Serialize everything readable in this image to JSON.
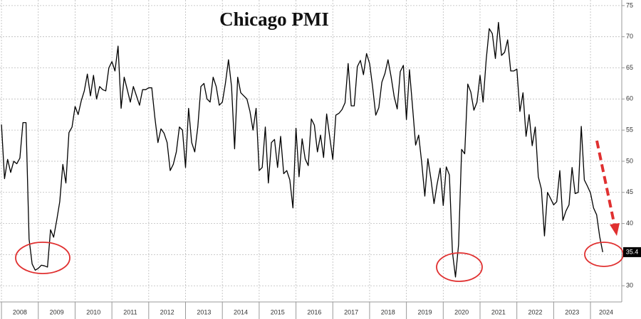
{
  "chart_data": {
    "type": "line",
    "title": "Chicago PMI",
    "xlim": [
      2007.96,
      2024.85
    ],
    "ylim": [
      27.4,
      75.9
    ],
    "yticks": [
      30,
      35,
      40,
      45,
      50,
      55,
      60,
      65,
      70,
      75
    ],
    "xticks": [
      2008,
      2009,
      2010,
      2011,
      2012,
      2013,
      2014,
      2015,
      2016,
      2017,
      2018,
      2019,
      2020,
      2021,
      2022,
      2023,
      2024
    ],
    "grid": true,
    "series": [
      {
        "name": "Chicago PMI",
        "color": "#000000",
        "x": [
          2008.0,
          2008.083,
          2008.167,
          2008.25,
          2008.333,
          2008.417,
          2008.5,
          2008.583,
          2008.667,
          2008.75,
          2008.833,
          2008.917,
          2009.0,
          2009.083,
          2009.167,
          2009.25,
          2009.333,
          2009.417,
          2009.5,
          2009.583,
          2009.667,
          2009.75,
          2009.833,
          2009.917,
          2010.0,
          2010.083,
          2010.167,
          2010.25,
          2010.333,
          2010.417,
          2010.5,
          2010.583,
          2010.667,
          2010.75,
          2010.833,
          2010.917,
          2011.0,
          2011.083,
          2011.167,
          2011.25,
          2011.333,
          2011.417,
          2011.5,
          2011.583,
          2011.667,
          2011.75,
          2011.833,
          2011.917,
          2012.0,
          2012.083,
          2012.167,
          2012.25,
          2012.333,
          2012.417,
          2012.5,
          2012.583,
          2012.667,
          2012.75,
          2012.833,
          2012.917,
          2013.0,
          2013.083,
          2013.167,
          2013.25,
          2013.333,
          2013.417,
          2013.5,
          2013.583,
          2013.667,
          2013.75,
          2013.833,
          2013.917,
          2014.0,
          2014.083,
          2014.167,
          2014.25,
          2014.333,
          2014.417,
          2014.5,
          2014.583,
          2014.667,
          2014.75,
          2014.833,
          2014.917,
          2015.0,
          2015.083,
          2015.167,
          2015.25,
          2015.333,
          2015.417,
          2015.5,
          2015.583,
          2015.667,
          2015.75,
          2015.833,
          2015.917,
          2016.0,
          2016.083,
          2016.167,
          2016.25,
          2016.333,
          2016.417,
          2016.5,
          2016.583,
          2016.667,
          2016.75,
          2016.833,
          2016.917,
          2017.0,
          2017.083,
          2017.167,
          2017.25,
          2017.333,
          2017.417,
          2017.5,
          2017.583,
          2017.667,
          2017.75,
          2017.833,
          2017.917,
          2018.0,
          2018.083,
          2018.167,
          2018.25,
          2018.333,
          2018.417,
          2018.5,
          2018.583,
          2018.667,
          2018.75,
          2018.833,
          2018.917,
          2019.0,
          2019.083,
          2019.167,
          2019.25,
          2019.333,
          2019.417,
          2019.5,
          2019.583,
          2019.667,
          2019.75,
          2019.833,
          2019.917,
          2020.0,
          2020.083,
          2020.167,
          2020.25,
          2020.333,
          2020.417,
          2020.5,
          2020.583,
          2020.667,
          2020.75,
          2020.833,
          2020.917,
          2021.0,
          2021.083,
          2021.167,
          2021.25,
          2021.333,
          2021.417,
          2021.5,
          2021.583,
          2021.667,
          2021.75,
          2021.833,
          2021.917,
          2022.0,
          2022.083,
          2022.167,
          2022.25,
          2022.333,
          2022.417,
          2022.5,
          2022.583,
          2022.667,
          2022.75,
          2022.833,
          2022.917,
          2023.0,
          2023.083,
          2023.167,
          2023.25,
          2023.333,
          2023.417,
          2023.5,
          2023.583,
          2023.667,
          2023.75,
          2023.833,
          2023.917,
          2024.0,
          2024.083,
          2024.167,
          2024.25,
          2024.333
        ],
        "values": [
          55.9,
          47.2,
          50.3,
          48.2,
          50.0,
          49.6,
          50.5,
          56.2,
          56.2,
          37.5,
          33.5,
          32.5,
          32.8,
          33.3,
          33.2,
          33.0,
          39.0,
          37.8,
          40.5,
          43.5,
          49.5,
          46.5,
          54.6,
          55.5,
          58.8,
          57.5,
          59.7,
          61.3,
          64.0,
          60.5,
          63.8,
          60.0,
          62.0,
          61.5,
          61.3,
          65.0,
          66.0,
          64.5,
          68.5,
          58.5,
          63.5,
          61.5,
          59.5,
          62.0,
          60.5,
          59.0,
          61.5,
          61.5,
          61.8,
          61.8,
          57.0,
          53.0,
          55.2,
          54.5,
          53.0,
          48.5,
          49.5,
          51.5,
          55.5,
          55.0,
          49.0,
          58.5,
          53.0,
          51.5,
          55.5,
          62.0,
          62.5,
          60.0,
          59.5,
          63.5,
          62.0,
          59.0,
          59.5,
          62.5,
          66.3,
          62.0,
          52.0,
          63.5,
          61.0,
          60.5,
          60.0,
          58.0,
          55.0,
          58.5,
          48.5,
          49.0,
          55.5,
          46.5,
          53.0,
          53.5,
          49.0,
          54.0,
          48.0,
          48.5,
          47.0,
          42.5,
          55.3,
          47.5,
          53.6,
          50.4,
          49.3,
          56.8,
          55.8,
          51.5,
          54.2,
          50.6,
          57.6,
          53.9,
          50.3,
          57.4,
          57.7,
          58.3,
          59.4,
          65.7,
          58.9,
          58.9,
          65.2,
          66.2,
          63.9,
          67.3,
          65.7,
          61.9,
          57.4,
          58.6,
          62.7,
          64.1,
          66.3,
          63.6,
          60.4,
          58.4,
          64.4,
          65.4,
          56.7,
          64.7,
          58.7,
          52.6,
          54.2,
          49.7,
          44.4,
          50.4,
          47.1,
          43.2,
          46.3,
          48.9,
          42.9,
          49.1,
          47.8,
          35.4,
          31.4,
          36.6,
          51.9,
          51.2,
          62.4,
          61.1,
          58.2,
          59.5,
          63.8,
          59.5,
          66.3,
          71.3,
          70.5,
          66.5,
          72.3,
          67.0,
          67.5,
          69.5,
          64.5,
          64.5,
          64.8,
          58.0,
          61.0,
          54.0,
          57.5,
          52.5,
          55.5,
          47.5,
          45.5,
          38.0,
          45.0,
          44.0,
          43.0,
          43.5,
          48.5,
          40.5,
          42.0,
          43.0,
          49.0,
          44.8,
          45.0,
          55.6,
          47.0,
          46.0,
          44.9,
          42.5,
          41.4,
          37.9,
          35.4
        ]
      }
    ]
  }
}
